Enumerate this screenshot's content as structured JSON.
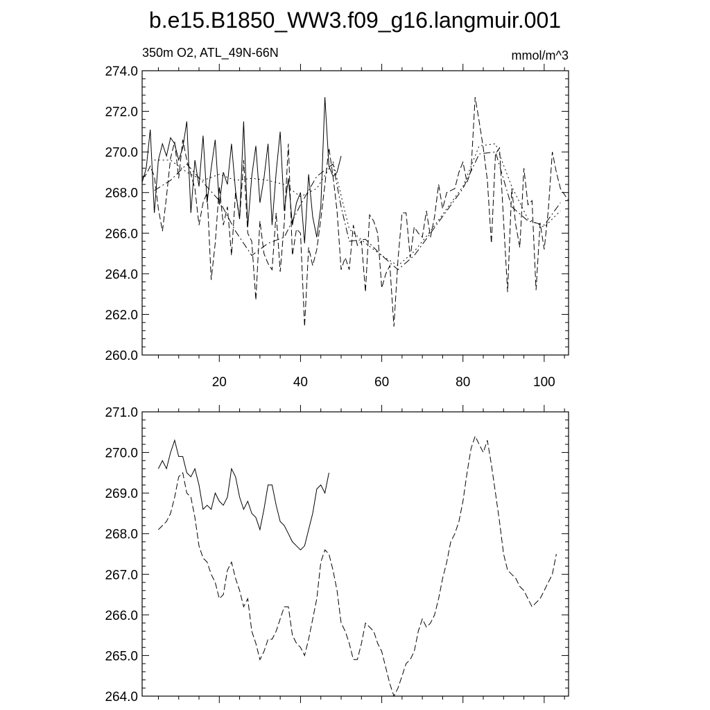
{
  "title": "b.e15.B1850_WW3.f09_g16.langmuir.001",
  "chart_data": [
    {
      "type": "line",
      "subtitle_left": "350m O2, ATL_49N-66N",
      "subtitle_right": "mmol/m^3",
      "xlim": [
        1,
        106
      ],
      "ylim": [
        260,
        274
      ],
      "xticks": [
        20,
        40,
        60,
        80,
        100
      ],
      "xtick_labels": [
        "20",
        "40",
        "60",
        "80",
        "100"
      ],
      "yticks": [
        260,
        262,
        264,
        266,
        268,
        270,
        272,
        274
      ],
      "ytick_labels": [
        "260.0",
        "262.0",
        "264.0",
        "266.0",
        "268.0",
        "270.0",
        "272.0",
        "274.0"
      ],
      "series": [
        {
          "style": "solid",
          "x": [
            1,
            2,
            3,
            4,
            5,
            6,
            7,
            8,
            9,
            10,
            11,
            12,
            13,
            14,
            15,
            16,
            17,
            18,
            19,
            20,
            21,
            22,
            23,
            24,
            25,
            26,
            27,
            28,
            29,
            30,
            31,
            32,
            33,
            34,
            35,
            36,
            37,
            38,
            39,
            40,
            41,
            42,
            43,
            44,
            45,
            46,
            47,
            48,
            49,
            50
          ],
          "y": [
            268.5,
            269.2,
            271.1,
            267.0,
            269.6,
            270.4,
            269.8,
            270.7,
            270.4,
            269.6,
            270.2,
            271.5,
            267.0,
            269.6,
            268.3,
            270.8,
            267.5,
            269.2,
            270.6,
            267.4,
            269.0,
            268.4,
            270.4,
            268.1,
            266.7,
            271.5,
            266.3,
            268.8,
            270.3,
            267.5,
            268.7,
            270.4,
            266.4,
            269.0,
            271.0,
            267.1,
            268.7,
            266.4,
            267.5,
            268.0,
            265.5,
            268.9,
            266.8,
            265.8,
            267.3,
            272.7,
            269.3,
            268.8,
            269.0,
            269.8
          ]
        },
        {
          "style": "dashed",
          "x": [
            1,
            2,
            3,
            4,
            5,
            6,
            7,
            8,
            9,
            10,
            11,
            12,
            13,
            14,
            15,
            16,
            17,
            18,
            19,
            20,
            21,
            22,
            23,
            24,
            25,
            26,
            27,
            28,
            29,
            30,
            31,
            32,
            33,
            34,
            35,
            36,
            37,
            38,
            39,
            40,
            41,
            42,
            43,
            44,
            45,
            46,
            47,
            48,
            49,
            50,
            51,
            52,
            53,
            54,
            55,
            56,
            57,
            58,
            59,
            60,
            61,
            62,
            63,
            64,
            65,
            66,
            67,
            68,
            69,
            70,
            71,
            72,
            73,
            74,
            75,
            76,
            77,
            78,
            79,
            80,
            81,
            82,
            83,
            84,
            85,
            86,
            87,
            88,
            89,
            90,
            91,
            92,
            93,
            94,
            95,
            96,
            97,
            98,
            99,
            100,
            101,
            102,
            103,
            104,
            105,
            106
          ],
          "y": [
            268.7,
            268.9,
            269.3,
            268.8,
            267.2,
            266.1,
            267.8,
            269.7,
            270.5,
            268.7,
            270.6,
            269.6,
            268.9,
            268.2,
            266.4,
            267.5,
            268.0,
            263.7,
            265.5,
            268.3,
            266.4,
            267.3,
            264.9,
            268.0,
            266.7,
            269.6,
            266.0,
            265.6,
            262.7,
            266.6,
            265.0,
            264.5,
            264.2,
            267.0,
            264.1,
            266.5,
            270.4,
            264.9,
            266.2,
            266.0,
            261.4,
            265.3,
            264.4,
            265.2,
            266.7,
            268.4,
            270.2,
            268.8,
            267.1,
            264.2,
            264.8,
            264.2,
            266.4,
            265.4,
            265.6,
            263.1,
            266.9,
            266.6,
            266.0,
            263.3,
            264.0,
            264.4,
            261.4,
            264.7,
            267.0,
            267.0,
            264.8,
            266.3,
            266.0,
            265.8,
            267.1,
            265.8,
            266.8,
            268.4,
            267.2,
            268.0,
            268.1,
            268.2,
            269.0,
            269.5,
            268.5,
            269.1,
            272.7,
            271.5,
            270.2,
            268.6,
            265.5,
            269.9,
            270.2,
            266.6,
            263.1,
            268.2,
            266.4,
            265.3,
            269.2,
            267.4,
            267.6,
            263.2,
            266.5,
            265.2,
            267.1,
            270.0,
            269.0,
            268.2,
            267.9,
            267.6
          ]
        },
        {
          "style": "dash-dot",
          "x": [
            4,
            8,
            12,
            16,
            20,
            24,
            28,
            32,
            36,
            40,
            44,
            48,
            50,
            52,
            56,
            60,
            64,
            68,
            72,
            76,
            80,
            84,
            88,
            92,
            96,
            100,
            104
          ],
          "y": [
            268.1,
            268.6,
            269.4,
            268.5,
            267.6,
            266.1,
            264.9,
            265.5,
            265.8,
            267.4,
            268.8,
            269.4,
            267.3,
            265.6,
            265.7,
            264.9,
            264.2,
            264.9,
            266.0,
            267.1,
            268.2,
            269.9,
            270.0,
            267.3,
            266.6,
            266.4,
            267.5
          ]
        },
        {
          "style": "dotted",
          "x": [
            4,
            8,
            12,
            16,
            20,
            24,
            28,
            32,
            36,
            40,
            44,
            48,
            52,
            56,
            60,
            64,
            68,
            72,
            76,
            80,
            84,
            88,
            92,
            96,
            100,
            104
          ],
          "y": [
            269.6,
            269.6,
            269.0,
            268.6,
            268.9,
            268.6,
            268.7,
            268.6,
            268.4,
            267.8,
            268.2,
            269.5,
            266.2,
            265.5,
            264.9,
            264.4,
            265.1,
            266.1,
            267.2,
            268.3,
            270.3,
            270.4,
            268.3,
            266.7,
            266.3,
            267.1
          ]
        }
      ]
    },
    {
      "type": "line",
      "xlim": [
        1,
        106
      ],
      "ylim": [
        264,
        271
      ],
      "xticks": [
        20,
        40,
        60,
        80,
        100
      ],
      "yticks": [
        264,
        265,
        266,
        267,
        268,
        269,
        270,
        271
      ],
      "ytick_labels": [
        "264.0",
        "265.0",
        "266.0",
        "267.0",
        "268.0",
        "269.0",
        "270.0",
        "271.0"
      ],
      "series": [
        {
          "style": "solid",
          "x": [
            5,
            6,
            7,
            8,
            9,
            10,
            11,
            12,
            13,
            14,
            15,
            16,
            17,
            18,
            19,
            20,
            21,
            22,
            23,
            24,
            25,
            26,
            27,
            28,
            29,
            30,
            31,
            32,
            33,
            34,
            35,
            36,
            37,
            38,
            39,
            40,
            41,
            42,
            43,
            44,
            45,
            46,
            47
          ],
          "y": [
            269.6,
            269.8,
            269.6,
            270.0,
            270.3,
            269.9,
            269.9,
            269.5,
            269.4,
            269.6,
            269.2,
            268.6,
            268.7,
            268.6,
            269.0,
            268.8,
            268.7,
            268.9,
            269.6,
            269.4,
            268.9,
            268.6,
            268.8,
            268.5,
            268.4,
            268.1,
            268.6,
            269.2,
            269.2,
            268.7,
            268.3,
            268.2,
            268.0,
            267.8,
            267.7,
            267.6,
            267.7,
            268.1,
            268.5,
            269.1,
            269.2,
            269.0,
            269.5
          ]
        },
        {
          "style": "dashed",
          "x": [
            5,
            6,
            7,
            8,
            9,
            10,
            11,
            12,
            13,
            14,
            15,
            16,
            17,
            18,
            19,
            20,
            21,
            22,
            23,
            24,
            25,
            26,
            27,
            28,
            29,
            30,
            31,
            32,
            33,
            34,
            35,
            36,
            37,
            38,
            39,
            40,
            41,
            42,
            43,
            44,
            45,
            46,
            47,
            48,
            49,
            50,
            51,
            52,
            53,
            54,
            55,
            56,
            57,
            58,
            59,
            60,
            61,
            62,
            63,
            64,
            65,
            66,
            67,
            68,
            69,
            70,
            71,
            72,
            73,
            74,
            75,
            76,
            77,
            78,
            79,
            80,
            81,
            82,
            83,
            84,
            85,
            86,
            87,
            88,
            89,
            90,
            91,
            92,
            93,
            94,
            95,
            96,
            97,
            98,
            99,
            100,
            101,
            102,
            103
          ],
          "y": [
            268.1,
            268.2,
            268.3,
            268.5,
            268.9,
            269.4,
            269.5,
            269.0,
            268.9,
            268.4,
            267.7,
            267.4,
            267.3,
            267.0,
            266.8,
            266.4,
            266.5,
            267.1,
            267.3,
            266.9,
            266.6,
            266.2,
            266.4,
            265.6,
            265.3,
            264.9,
            265.1,
            265.4,
            265.4,
            265.6,
            265.9,
            266.2,
            266.2,
            265.5,
            265.3,
            265.2,
            265.0,
            265.4,
            265.9,
            266.4,
            267.3,
            267.6,
            267.5,
            267.1,
            266.6,
            265.8,
            265.6,
            265.3,
            264.9,
            264.9,
            265.3,
            265.8,
            265.7,
            265.6,
            265.3,
            265.1,
            264.7,
            264.3,
            264.0,
            264.2,
            264.5,
            264.8,
            264.9,
            265.1,
            265.6,
            265.9,
            265.7,
            265.8,
            266.0,
            266.4,
            266.9,
            267.3,
            267.8,
            268.0,
            268.3,
            268.8,
            269.5,
            270.1,
            270.4,
            270.2,
            270.0,
            270.3,
            269.7,
            269.0,
            268.3,
            267.5,
            267.1,
            267.0,
            266.9,
            266.7,
            266.6,
            266.4,
            266.2,
            266.3,
            266.4,
            266.6,
            266.8,
            267.0,
            267.5
          ]
        }
      ]
    }
  ]
}
